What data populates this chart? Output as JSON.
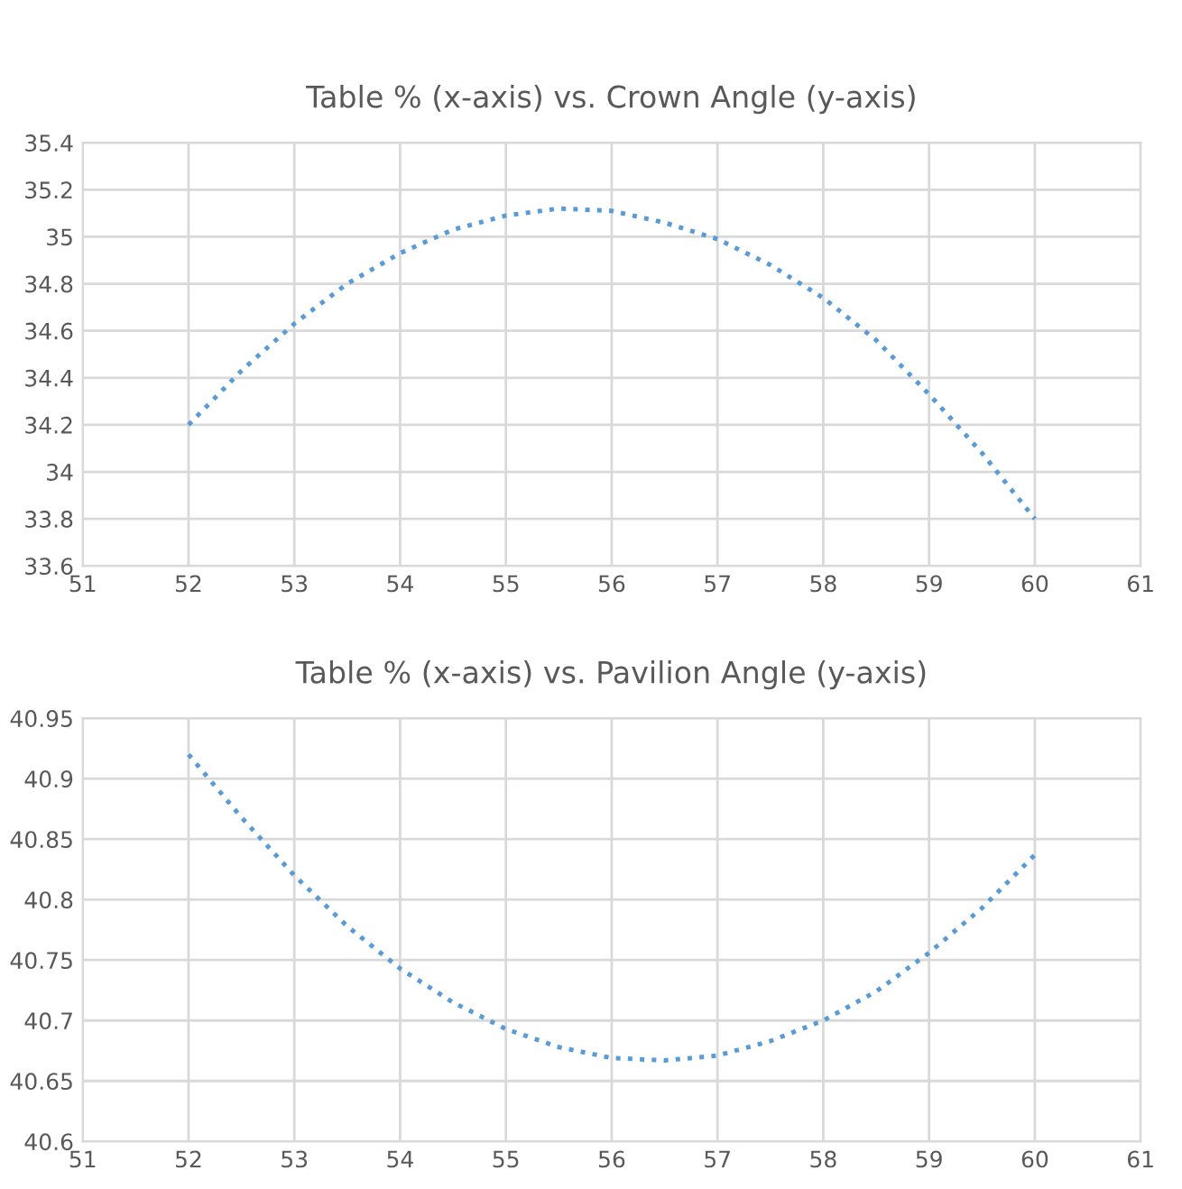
{
  "chart_data": [
    {
      "type": "line",
      "title": "Table % (x-axis) vs. Crown Angle (y-axis)",
      "x": [
        52,
        52.5,
        53,
        53.5,
        54,
        54.5,
        55,
        55.5,
        56,
        56.5,
        57,
        57.5,
        58,
        58.5,
        59,
        59.5,
        60
      ],
      "series": [
        {
          "color": "#5b9bd5",
          "values": [
            34.2,
            34.43,
            34.63,
            34.8,
            34.93,
            35.03,
            35.09,
            35.12,
            35.11,
            35.06,
            34.99,
            34.88,
            34.74,
            34.56,
            34.33,
            34.08,
            33.8
          ]
        }
      ],
      "xlim": [
        51,
        61
      ],
      "xticks": [
        51,
        52,
        53,
        54,
        55,
        56,
        57,
        58,
        59,
        60,
        61
      ],
      "ylim": [
        33.6,
        35.4
      ],
      "yticks": [
        33.6,
        33.8,
        34,
        34.2,
        34.4,
        34.6,
        34.8,
        35,
        35.2,
        35.4
      ],
      "grid": true,
      "line_style": "dotted",
      "legend": false
    },
    {
      "type": "line",
      "title": "Table % (x-axis) vs. Pavilion Angle (y-axis)",
      "x": [
        52,
        52.5,
        53,
        53.5,
        54,
        54.5,
        55,
        55.5,
        56,
        56.5,
        57,
        57.5,
        58,
        58.5,
        59,
        59.5,
        60
      ],
      "series": [
        {
          "color": "#5b9bd5",
          "values": [
            40.92,
            40.868,
            40.82,
            40.778,
            40.743,
            40.715,
            40.693,
            40.678,
            40.669,
            40.667,
            40.671,
            40.683,
            40.7,
            40.724,
            40.756,
            40.793,
            40.837
          ]
        }
      ],
      "xlim": [
        51,
        61
      ],
      "xticks": [
        51,
        52,
        53,
        54,
        55,
        56,
        57,
        58,
        59,
        60,
        61
      ],
      "ylim": [
        40.6,
        40.95
      ],
      "yticks": [
        40.6,
        40.65,
        40.7,
        40.75,
        40.8,
        40.85,
        40.9,
        40.95
      ],
      "grid": true,
      "line_style": "dotted",
      "legend": false
    }
  ]
}
